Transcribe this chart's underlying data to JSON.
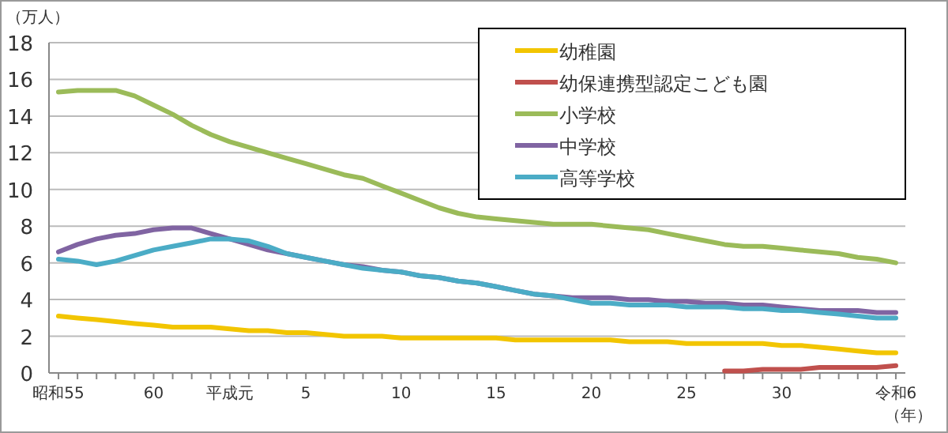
{
  "chart_data": {
    "type": "line",
    "ylabel": "（万人）",
    "xlabel": "（年）",
    "categories": [
      "昭和55",
      null,
      null,
      null,
      null,
      "60",
      null,
      null,
      null,
      "平成元",
      null,
      null,
      null,
      "5",
      null,
      null,
      null,
      null,
      "10",
      null,
      null,
      null,
      null,
      "15",
      null,
      null,
      null,
      null,
      "20",
      null,
      null,
      null,
      null,
      "25",
      null,
      null,
      null,
      null,
      "30",
      null,
      null,
      null,
      null,
      null,
      "令和6"
    ],
    "ylim": [
      0,
      18
    ],
    "yticks": [
      0,
      2,
      4,
      6,
      8,
      10,
      12,
      14,
      16,
      18
    ],
    "grid": "y",
    "legend": "top right",
    "marker": "none",
    "line_style": "solid",
    "series": [
      {
        "name": "幼稚園",
        "color": "#f2c500",
        "values": [
          3.1,
          3.0,
          2.9,
          2.8,
          2.7,
          2.6,
          2.5,
          2.5,
          2.5,
          2.4,
          2.3,
          2.3,
          2.2,
          2.2,
          2.1,
          2.0,
          2.0,
          2.0,
          1.9,
          1.9,
          1.9,
          1.9,
          1.9,
          1.9,
          1.8,
          1.8,
          1.8,
          1.8,
          1.8,
          1.8,
          1.7,
          1.7,
          1.7,
          1.6,
          1.6,
          1.6,
          1.6,
          1.6,
          1.5,
          1.5,
          1.4,
          1.3,
          1.2,
          1.1,
          1.1
        ]
      },
      {
        "name": "幼保連携型認定こども園",
        "color": "#c0504d",
        "values": [
          null,
          null,
          null,
          null,
          null,
          null,
          null,
          null,
          null,
          null,
          null,
          null,
          null,
          null,
          null,
          null,
          null,
          null,
          null,
          null,
          null,
          null,
          null,
          null,
          null,
          null,
          null,
          null,
          null,
          null,
          null,
          null,
          null,
          null,
          null,
          0.1,
          0.1,
          0.2,
          0.2,
          0.2,
          0.3,
          0.3,
          0.3,
          0.3,
          0.4
        ]
      },
      {
        "name": "小学校",
        "color": "#9bbb59",
        "values": [
          15.3,
          15.4,
          15.4,
          15.4,
          15.1,
          14.6,
          14.1,
          13.5,
          13.0,
          12.6,
          12.3,
          12.0,
          11.7,
          11.4,
          11.1,
          10.8,
          10.6,
          10.2,
          9.8,
          9.4,
          9.0,
          8.7,
          8.5,
          8.4,
          8.3,
          8.2,
          8.1,
          8.1,
          8.1,
          8.0,
          7.9,
          7.8,
          7.6,
          7.4,
          7.2,
          7.0,
          6.9,
          6.9,
          6.8,
          6.7,
          6.6,
          6.5,
          6.3,
          6.2,
          6.0
        ]
      },
      {
        "name": "中学校",
        "color": "#8064a2",
        "values": [
          6.6,
          7.0,
          7.3,
          7.5,
          7.6,
          7.8,
          7.9,
          7.9,
          7.6,
          7.3,
          7.0,
          6.7,
          6.5,
          6.3,
          6.1,
          5.9,
          5.8,
          5.6,
          5.5,
          5.3,
          5.2,
          5.0,
          4.9,
          4.7,
          4.5,
          4.3,
          4.2,
          4.1,
          4.1,
          4.1,
          4.0,
          4.0,
          3.9,
          3.9,
          3.8,
          3.8,
          3.7,
          3.7,
          3.6,
          3.5,
          3.4,
          3.4,
          3.4,
          3.3,
          3.3
        ]
      },
      {
        "name": "高等学校",
        "color": "#4bacc6",
        "values": [
          6.2,
          6.1,
          5.9,
          6.1,
          6.4,
          6.7,
          6.9,
          7.1,
          7.3,
          7.3,
          7.2,
          6.9,
          6.5,
          6.3,
          6.1,
          5.9,
          5.7,
          5.6,
          5.5,
          5.3,
          5.2,
          5.0,
          4.9,
          4.7,
          4.5,
          4.3,
          4.2,
          4.0,
          3.8,
          3.8,
          3.7,
          3.7,
          3.7,
          3.6,
          3.6,
          3.6,
          3.5,
          3.5,
          3.4,
          3.4,
          3.3,
          3.2,
          3.1,
          3.0,
          3.0
        ]
      }
    ]
  }
}
